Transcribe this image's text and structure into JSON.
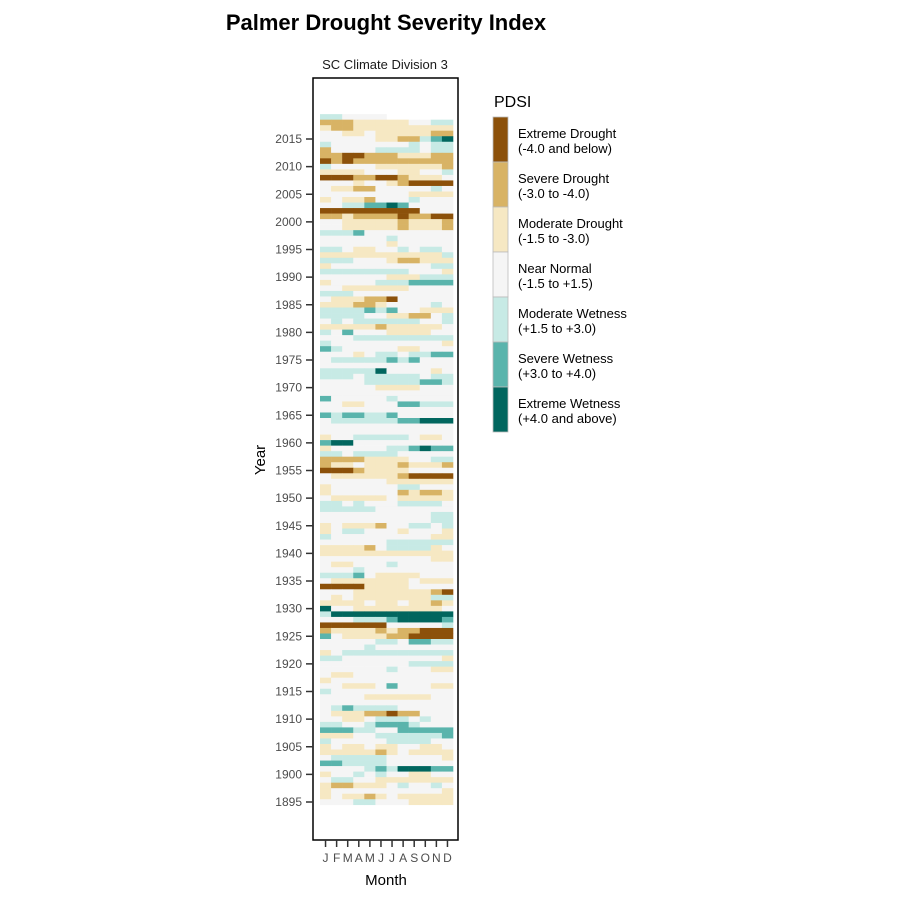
{
  "chart_data": {
    "type": "heatmap",
    "title": "Palmer Drought Severity Index",
    "subtitle": "SC Climate Division 3",
    "xlabel": "Month",
    "ylabel": "Year",
    "x_categories": [
      "J",
      "F",
      "M",
      "A",
      "M",
      "J",
      "J",
      "A",
      "S",
      "O",
      "N",
      "D"
    ],
    "y_ticks": [
      1895,
      1900,
      1905,
      1910,
      1915,
      1920,
      1925,
      1930,
      1935,
      1940,
      1945,
      1950,
      1955,
      1960,
      1965,
      1970,
      1975,
      1980,
      1985,
      1990,
      1995,
      2000,
      2005,
      2010,
      2015
    ],
    "ylim": [
      1895,
      2019
    ],
    "legend": {
      "title": "PDSI",
      "position": "right",
      "categories": [
        {
          "code": "1",
          "name": "Extreme Drought",
          "range": "(-4.0 and below)",
          "color": "#8c510a"
        },
        {
          "code": "2",
          "name": "Severe Drought",
          "range": "(-3.0 to -4.0)",
          "color": "#d8b365"
        },
        {
          "code": "3",
          "name": "Moderate Drought",
          "range": "(-1.5 to -3.0)",
          "color": "#f6e8c3"
        },
        {
          "code": "4",
          "name": "Near Normal",
          "range": "(-1.5 to +1.5)",
          "color": "#f5f5f5"
        },
        {
          "code": "5",
          "name": "Moderate Wetness",
          "range": "(+1.5 to +3.0)",
          "color": "#c7eae5"
        },
        {
          "code": "6",
          "name": "Severe Wetness",
          "range": "(+3.0 to +4.0)",
          "color": "#5ab4ac"
        },
        {
          "code": "7",
          "name": "Extreme Wetness",
          "range": "(+4.0 and above)",
          "color": "#01665e"
        }
      ]
    },
    "rows": [
      {
        "year": 2019,
        "classes": "554444"
      },
      {
        "year": 2018,
        "classes": "222333334455"
      },
      {
        "year": 2017,
        "classes": "322333333333"
      },
      {
        "year": 2016,
        "classes": "443343333322"
      },
      {
        "year": 2015,
        "classes": "444443322567"
      },
      {
        "year": 2014,
        "classes": "544444445455"
      },
      {
        "year": 2013,
        "classes": "244445555455"
      },
      {
        "year": 2012,
        "classes": "221122233322"
      },
      {
        "year": 2011,
        "classes": "121222222222"
      },
      {
        "year": 2010,
        "classes": "544443333332"
      },
      {
        "year": 2009,
        "classes": "333344433445"
      },
      {
        "year": 2008,
        "classes": "111221123334"
      },
      {
        "year": 2007,
        "classes": "444344321111"
      },
      {
        "year": 2006,
        "classes": "433224444454"
      },
      {
        "year": 2005,
        "classes": "444444443333"
      },
      {
        "year": 2004,
        "classes": "343324445444"
      },
      {
        "year": 2003,
        "classes": "445566764444"
      },
      {
        "year": 2002,
        "classes": "111111111444"
      },
      {
        "year": 2001,
        "classes": "223222212211"
      },
      {
        "year": 2000,
        "classes": "443333323332"
      },
      {
        "year": 1999,
        "classes": "443333323332"
      },
      {
        "year": 1998,
        "classes": "555644444444"
      },
      {
        "year": 1997,
        "classes": "444444544444"
      },
      {
        "year": 1996,
        "classes": "444444344444"
      },
      {
        "year": 1995,
        "classes": "554334454554"
      },
      {
        "year": 1994,
        "classes": "333333333335"
      },
      {
        "year": 1993,
        "classes": "555444322333"
      },
      {
        "year": 1992,
        "classes": "344444444455"
      },
      {
        "year": 1991,
        "classes": "555555554443"
      },
      {
        "year": 1990,
        "classes": "444444333555"
      },
      {
        "year": 1989,
        "classes": "344445556666"
      },
      {
        "year": 1988,
        "classes": "443333334444"
      },
      {
        "year": 1987,
        "classes": "555444444444"
      },
      {
        "year": 1986,
        "classes": "433322144444"
      },
      {
        "year": 1985,
        "classes": "333223444454"
      },
      {
        "year": 1984,
        "classes": "555565644333"
      },
      {
        "year": 1983,
        "classes": "555544332245"
      },
      {
        "year": 1982,
        "classes": "454555555445"
      },
      {
        "year": 1981,
        "classes": "333332333334"
      },
      {
        "year": 1980,
        "classes": "546444333344"
      },
      {
        "year": 1979,
        "classes": "444555555555"
      },
      {
        "year": 1978,
        "classes": "544444444443"
      },
      {
        "year": 1977,
        "classes": "654444433444"
      },
      {
        "year": 1976,
        "classes": "444345545566"
      },
      {
        "year": 1975,
        "classes": "455555656444"
      },
      {
        "year": 1974,
        "classes": "444444444444"
      },
      {
        "year": 1973,
        "classes": "555557444434"
      },
      {
        "year": 1972,
        "classes": "555455555455"
      },
      {
        "year": 1971,
        "classes": "444455555665"
      },
      {
        "year": 1970,
        "classes": "444443333444"
      },
      {
        "year": 1969,
        "classes": "444444444444"
      },
      {
        "year": 1968,
        "classes": "644444544444"
      },
      {
        "year": 1967,
        "classes": "443344466555"
      },
      {
        "year": 1966,
        "classes": "444444444444"
      },
      {
        "year": 1965,
        "classes": "656655644444"
      },
      {
        "year": 1964,
        "classes": "455555566777"
      },
      {
        "year": 1963,
        "classes": "444444444444"
      },
      {
        "year": 1962,
        "classes": "444444444444"
      },
      {
        "year": 1961,
        "classes": "344555554334"
      },
      {
        "year": 1960,
        "classes": "677444444444"
      },
      {
        "year": 1959,
        "classes": "344444556766"
      },
      {
        "year": 1958,
        "classes": "554555544444"
      },
      {
        "year": 1957,
        "classes": "222233334455"
      },
      {
        "year": 1956,
        "classes": "233433323332"
      },
      {
        "year": 1955,
        "classes": "111233334444"
      },
      {
        "year": 1954,
        "classes": "433333321111"
      },
      {
        "year": 1953,
        "classes": "444444333333"
      },
      {
        "year": 1952,
        "classes": "344444455444"
      },
      {
        "year": 1951,
        "classes": "344444423223"
      },
      {
        "year": 1950,
        "classes": "433333433333"
      },
      {
        "year": 1949,
        "classes": "554544455554"
      },
      {
        "year": 1948,
        "classes": "555554444444"
      },
      {
        "year": 1947,
        "classes": "444444444455"
      },
      {
        "year": 1946,
        "classes": "444444444455"
      },
      {
        "year": 1945,
        "classes": "343332445545"
      },
      {
        "year": 1944,
        "classes": "345544434443"
      },
      {
        "year": 1943,
        "classes": "544444444433"
      },
      {
        "year": 1942,
        "classes": "444444555555"
      },
      {
        "year": 1941,
        "classes": "333324555534"
      },
      {
        "year": 1940,
        "classes": "333333333333"
      },
      {
        "year": 1939,
        "classes": "444444444433"
      },
      {
        "year": 1938,
        "classes": "433444544444"
      },
      {
        "year": 1937,
        "classes": "444544444444"
      },
      {
        "year": 1936,
        "classes": "555643333444"
      },
      {
        "year": 1935,
        "classes": "433333334333"
      },
      {
        "year": 1934,
        "classes": "111133334444"
      },
      {
        "year": 1933,
        "classes": "444333333321"
      },
      {
        "year": 1932,
        "classes": "434333333355"
      },
      {
        "year": 1931,
        "classes": "333343343323"
      },
      {
        "year": 1930,
        "classes": "744333333334"
      },
      {
        "year": 1929,
        "classes": "577777777777"
      },
      {
        "year": 1928,
        "classes": "444555677776"
      },
      {
        "year": 1927,
        "classes": "111111444445"
      },
      {
        "year": 1926,
        "classes": "233332322111"
      },
      {
        "year": 1925,
        "classes": "643333221111"
      },
      {
        "year": 1924,
        "classes": "444445546655"
      },
      {
        "year": 1923,
        "classes": "444454444444"
      },
      {
        "year": 1922,
        "classes": "345555555555"
      },
      {
        "year": 1921,
        "classes": "554444444443"
      },
      {
        "year": 1920,
        "classes": "444444445555"
      },
      {
        "year": 1919,
        "classes": "444444544433"
      },
      {
        "year": 1918,
        "classes": "433444444444"
      },
      {
        "year": 1917,
        "classes": "344444444444"
      },
      {
        "year": 1916,
        "classes": "443334644433"
      },
      {
        "year": 1915,
        "classes": "544444444444"
      },
      {
        "year": 1914,
        "classes": "444433333344"
      },
      {
        "year": 1913,
        "classes": "444444444444"
      },
      {
        "year": 1912,
        "classes": "456555544444"
      },
      {
        "year": 1911,
        "classes": "433322122444"
      },
      {
        "year": 1910,
        "classes": "443345554544"
      },
      {
        "year": 1909,
        "classes": "554456665444"
      },
      {
        "year": 1908,
        "classes": "666554466666"
      },
      {
        "year": 1907,
        "classes": "333445555556"
      },
      {
        "year": 1906,
        "classes": "544444555544"
      },
      {
        "year": 1905,
        "classes": "343343344334"
      },
      {
        "year": 1904,
        "classes": "333332343333"
      },
      {
        "year": 1903,
        "classes": "455555444443"
      },
      {
        "year": 1902,
        "classes": "665555444444"
      },
      {
        "year": 1901,
        "classes": "444456577766"
      },
      {
        "year": 1900,
        "classes": "344545443344"
      },
      {
        "year": 1899,
        "classes": "455443333333"
      },
      {
        "year": 1898,
        "classes": "322333454454"
      },
      {
        "year": 1897,
        "classes": "344444444443"
      },
      {
        "year": 1896,
        "classes": "343323433333"
      },
      {
        "year": 1895,
        "classes": "444554443333"
      }
    ]
  }
}
